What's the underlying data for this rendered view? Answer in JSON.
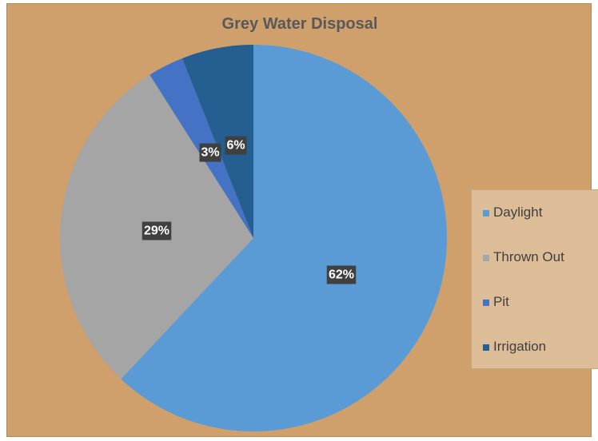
{
  "chart_data": {
    "type": "pie",
    "title": "Grey Water Disposal",
    "slices": [
      {
        "label": "Daylight",
        "value": 62,
        "display": "62%",
        "color": "#5b9bd5"
      },
      {
        "label": "Thrown Out",
        "value": 29,
        "display": "29%",
        "color": "#a5a5a5"
      },
      {
        "label": "Pit",
        "value": 3,
        "display": "3%",
        "color": "#4472c4"
      },
      {
        "label": "Irrigation",
        "value": 6,
        "display": "6%",
        "color": "#255e91"
      }
    ],
    "legend_position": "right",
    "background_color": "#cf9f6c",
    "legend_background_color": "#ddbd98",
    "data_label_background": "#404040"
  }
}
